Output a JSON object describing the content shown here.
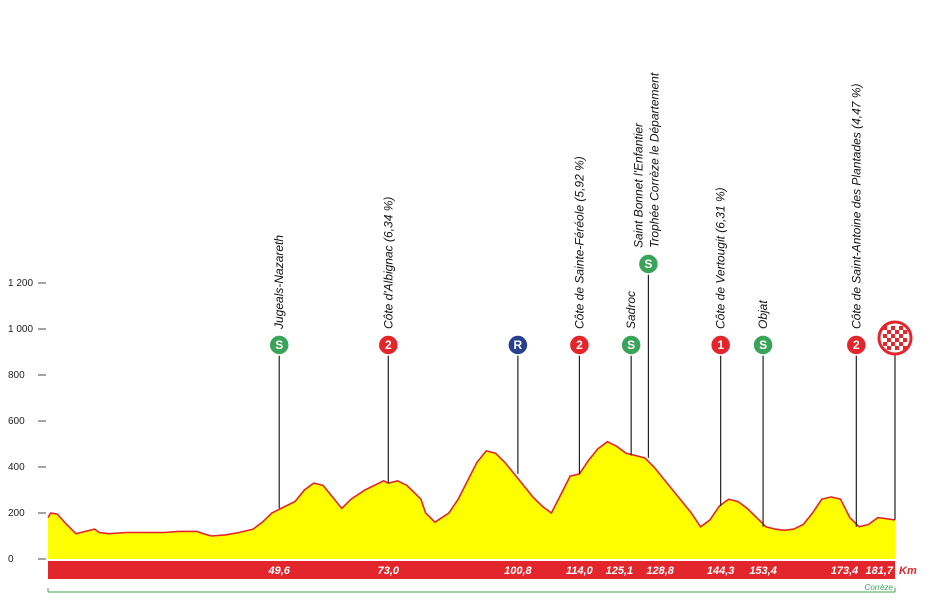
{
  "chart_data": {
    "type": "area",
    "xlabel": "",
    "ylabel": "",
    "x_unit": "Km",
    "y_ticks": [
      {
        "value": 0,
        "label": "0"
      },
      {
        "value": 200,
        "label": "200"
      },
      {
        "value": 400,
        "label": "400"
      },
      {
        "value": 600,
        "label": "600"
      },
      {
        "value": 800,
        "label": "800"
      },
      {
        "value": 1000,
        "label": "1 000"
      },
      {
        "value": 1200,
        "label": "1 200"
      }
    ],
    "xlim": [
      0,
      181.7
    ],
    "ylim": [
      0,
      1200
    ],
    "profile": [
      [
        0,
        180
      ],
      [
        0.6,
        200
      ],
      [
        2,
        195
      ],
      [
        4,
        150
      ],
      [
        6,
        110
      ],
      [
        8,
        120
      ],
      [
        10,
        130
      ],
      [
        11,
        115
      ],
      [
        13,
        110
      ],
      [
        17,
        115
      ],
      [
        21,
        115
      ],
      [
        25,
        115
      ],
      [
        28,
        120
      ],
      [
        32,
        120
      ],
      [
        33,
        112
      ],
      [
        35,
        100
      ],
      [
        38,
        105
      ],
      [
        41,
        115
      ],
      [
        44,
        130
      ],
      [
        46,
        160
      ],
      [
        48,
        200
      ],
      [
        50,
        220
      ],
      [
        53,
        250
      ],
      [
        55,
        300
      ],
      [
        57,
        330
      ],
      [
        59,
        320
      ],
      [
        61,
        270
      ],
      [
        63,
        220
      ],
      [
        65,
        260
      ],
      [
        68,
        300
      ],
      [
        70,
        320
      ],
      [
        72,
        340
      ],
      [
        73,
        330
      ],
      [
        75,
        340
      ],
      [
        77,
        320
      ],
      [
        78,
        300
      ],
      [
        80,
        260
      ],
      [
        81,
        200
      ],
      [
        83,
        160
      ],
      [
        86,
        200
      ],
      [
        88,
        260
      ],
      [
        90,
        340
      ],
      [
        92,
        420
      ],
      [
        94,
        470
      ],
      [
        96,
        460
      ],
      [
        98,
        420
      ],
      [
        100,
        370
      ],
      [
        102,
        320
      ],
      [
        104,
        270
      ],
      [
        106,
        230
      ],
      [
        108,
        200
      ],
      [
        110,
        280
      ],
      [
        112,
        360
      ],
      [
        114,
        370
      ],
      [
        116,
        430
      ],
      [
        118,
        480
      ],
      [
        120,
        510
      ],
      [
        122,
        490
      ],
      [
        124,
        460
      ],
      [
        126,
        450
      ],
      [
        128,
        440
      ],
      [
        130,
        400
      ],
      [
        132,
        350
      ],
      [
        134,
        300
      ],
      [
        136,
        250
      ],
      [
        138,
        200
      ],
      [
        140,
        140
      ],
      [
        142,
        170
      ],
      [
        144,
        230
      ],
      [
        146,
        260
      ],
      [
        148,
        250
      ],
      [
        150,
        220
      ],
      [
        152,
        180
      ],
      [
        154,
        140
      ],
      [
        156,
        130
      ],
      [
        158,
        125
      ],
      [
        160,
        130
      ],
      [
        162,
        150
      ],
      [
        164,
        200
      ],
      [
        166,
        260
      ],
      [
        168,
        270
      ],
      [
        170,
        260
      ],
      [
        172,
        180
      ],
      [
        174,
        140
      ],
      [
        176,
        150
      ],
      [
        178,
        180
      ],
      [
        181.7,
        170
      ]
    ],
    "profile_scale": "plot",
    "km_markers": [
      {
        "km": 49.6,
        "label": "49,6"
      },
      {
        "km": 73.0,
        "label": "73,0"
      },
      {
        "km": 100.8,
        "label": "100,8"
      },
      {
        "km": 114.0,
        "label": "114,0"
      },
      {
        "km": 125.1,
        "label": "125,1"
      },
      {
        "km": 128.8,
        "label": "128,8"
      },
      {
        "km": 144.3,
        "label": "144,3"
      },
      {
        "km": 153.4,
        "label": "153,4"
      },
      {
        "km": 173.4,
        "label": "173,4"
      },
      {
        "km": 181.7,
        "label": "181,7"
      }
    ],
    "waypoints": [
      {
        "km": 49.6,
        "icon": "S",
        "icon_color": "#3aa35a",
        "name": "Jugeals-Nazareth",
        "name2": ""
      },
      {
        "km": 73.0,
        "icon": "2",
        "icon_color": "#e2262b",
        "name": "Côte d'Albignac (6,34 %)",
        "name2": ""
      },
      {
        "km": 100.8,
        "icon": "R",
        "icon_color": "#2a3f8f",
        "name": "",
        "name2": ""
      },
      {
        "km": 114.0,
        "icon": "2",
        "icon_color": "#e2262b",
        "name": "Côte de Sainte-Féréole (5,92 %)",
        "name2": ""
      },
      {
        "km": 125.1,
        "icon": "S",
        "icon_color": "#3aa35a",
        "name": "Sadroc",
        "name2": ""
      },
      {
        "km": 128.8,
        "icon": "S",
        "icon_color": "#3aa35a",
        "name": "Saint Bonnet l'Enfantier",
        "name2": "Trophée Corrèze le Département"
      },
      {
        "km": 144.3,
        "icon": "1",
        "icon_color": "#e2262b",
        "name": "Côte de Vertougit (6,31 %)",
        "name2": ""
      },
      {
        "km": 153.4,
        "icon": "S",
        "icon_color": "#3aa35a",
        "name": "Objat",
        "name2": ""
      },
      {
        "km": 173.4,
        "icon": "2",
        "icon_color": "#e2262b",
        "name": "Côte de Saint-Antoine des Plantades (4,47 %)",
        "name2": ""
      },
      {
        "km": 181.7,
        "icon": "finish",
        "icon_color": "#e2262b",
        "name": "",
        "name2": ""
      }
    ],
    "department_label": "Corrèze",
    "colors": {
      "fill": "#ffff00",
      "outline": "#e2262b",
      "km_band": "#e2262b",
      "department_line": "#3aa35a",
      "axis": "#444444"
    },
    "grid": false
  }
}
